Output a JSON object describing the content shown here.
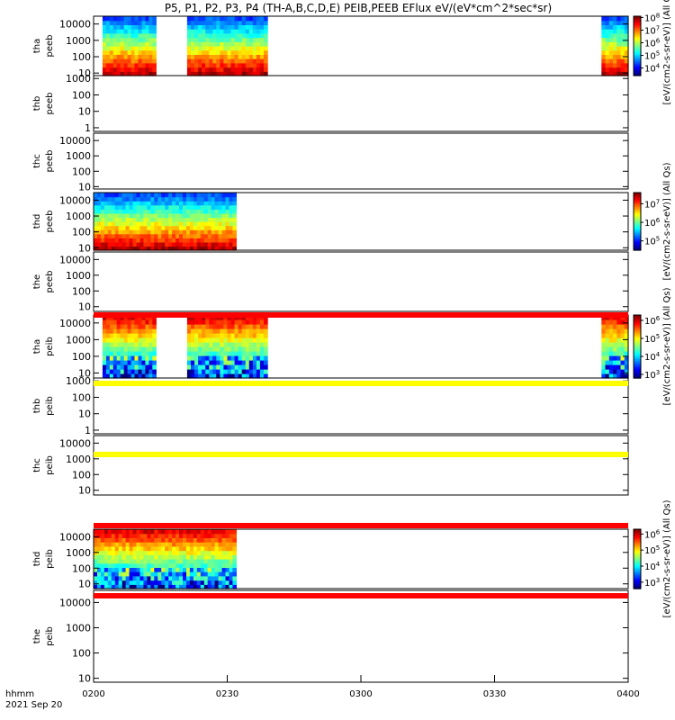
{
  "title": "P5, P1, P2, P3, P4 (TH-A,B,C,D,E) PEIB,PEEB EFlux eV/(eV*cm^2*sec*sr)",
  "chart_data": {
    "type": "heatmap",
    "title": "P5, P1, P2, P3, P4 (TH-A,B,C,D,E) PEIB,PEEB EFlux eV/(eV*cm^2*sec*sr)",
    "x_label": "hhmm",
    "date_label": "2021 Sep 20",
    "x_range": [
      "0200",
      "0400"
    ],
    "x_ticks": [
      "0200",
      "0230",
      "0300",
      "0330",
      "0400"
    ],
    "y_scale": "log",
    "colorbar_unit": "[eV/(cm2-s-sr-eV)] (All Qs)",
    "panels": [
      {
        "name": "tha peeb",
        "ylabel": [
          "tha",
          "peeb"
        ],
        "yticks": [
          "10",
          "100",
          "1000",
          "10000"
        ],
        "ylim": [
          7,
          30000
        ],
        "data_intervals": [
          [
            "0202",
            "0214"
          ],
          [
            "0221",
            "0239"
          ],
          [
            "0354",
            "0400"
          ]
        ],
        "colorbar": {
          "ticks": [
            "10^4",
            "10^5",
            "10^6",
            "10^7",
            "10^8"
          ],
          "min_exp": 3.4,
          "max_exp": 8.1
        }
      },
      {
        "name": "thb peeb",
        "ylabel": [
          "thb",
          "peeb"
        ],
        "yticks": [
          "1",
          "10",
          "100",
          "1000"
        ],
        "ylim": [
          0.6,
          1500
        ],
        "data_intervals": [],
        "colorbar": null
      },
      {
        "name": "thc peeb",
        "ylabel": [
          "thc",
          "peeb"
        ],
        "yticks": [
          "10",
          "100",
          "1000",
          "10000"
        ],
        "ylim": [
          7,
          30000
        ],
        "data_intervals": [],
        "colorbar": null
      },
      {
        "name": "thd peeb",
        "ylabel": [
          "thd",
          "peeb"
        ],
        "yticks": [
          "10",
          "100",
          "1000",
          "10000"
        ],
        "ylim": [
          7,
          30000
        ],
        "data_intervals": [
          [
            "0200",
            "0232"
          ]
        ],
        "colorbar": {
          "ticks": [
            "10^5",
            "10^6",
            "10^7"
          ],
          "min_exp": 4.5,
          "max_exp": 7.6
        }
      },
      {
        "name": "the peeb",
        "ylabel": [
          "the",
          "peeb"
        ],
        "yticks": [
          "10",
          "100",
          "1000",
          "10000"
        ],
        "ylim": [
          5,
          30000
        ],
        "data_intervals": [],
        "colorbar": null
      },
      {
        "name": "tha peib",
        "ylabel": [
          "tha",
          "peib"
        ],
        "yticks": [
          "10",
          "100",
          "1000",
          "10000"
        ],
        "ylim": [
          5,
          30000
        ],
        "data_intervals": [
          [
            "0202",
            "0214"
          ],
          [
            "0221",
            "0239"
          ],
          [
            "0354",
            "0400"
          ]
        ],
        "colorbar": {
          "ticks": [
            "10^3",
            "10^4",
            "10^5",
            "10^6"
          ],
          "min_exp": 2.8,
          "max_exp": 6.3
        }
      },
      {
        "name": "thb peib",
        "ylabel": [
          "thb",
          "peib"
        ],
        "yticks": [
          "1",
          "10",
          "100",
          "1000"
        ],
        "ylim": [
          0.6,
          1500
        ],
        "data_intervals": [],
        "colorbar": null
      },
      {
        "name": "thc peib",
        "ylabel": [
          "thc",
          "peib"
        ],
        "yticks": [
          "10",
          "100",
          "1000",
          "10000"
        ],
        "ylim": [
          5,
          30000
        ],
        "data_intervals": [],
        "colorbar": null
      },
      {
        "name": "thd peib",
        "ylabel": [
          "thd",
          "peib"
        ],
        "yticks": [
          "10",
          "100",
          "1000",
          "10000"
        ],
        "ylim": [
          5,
          30000
        ],
        "data_intervals": [
          [
            "0200",
            "0232"
          ]
        ],
        "colorbar": {
          "ticks": [
            "10^3",
            "10^4",
            "10^5",
            "10^6"
          ],
          "min_exp": 2.6,
          "max_exp": 6.3
        }
      },
      {
        "name": "the peib",
        "ylabel": [
          "the",
          "peib"
        ],
        "yticks": [
          "10",
          "100",
          "1000",
          "10000"
        ],
        "ylim": [
          7,
          30000
        ],
        "data_intervals": [],
        "colorbar": null
      }
    ],
    "stripes": [
      {
        "color": "#ff0000",
        "below_panel": 4
      },
      {
        "color": "#ffff00",
        "below_panel": 5
      },
      {
        "color": "#ffff00",
        "below_panel": 6
      },
      {
        "color": "#ff0000",
        "below_panel": 7
      },
      {
        "color": "#ff0000",
        "below_panel": 8
      }
    ]
  }
}
